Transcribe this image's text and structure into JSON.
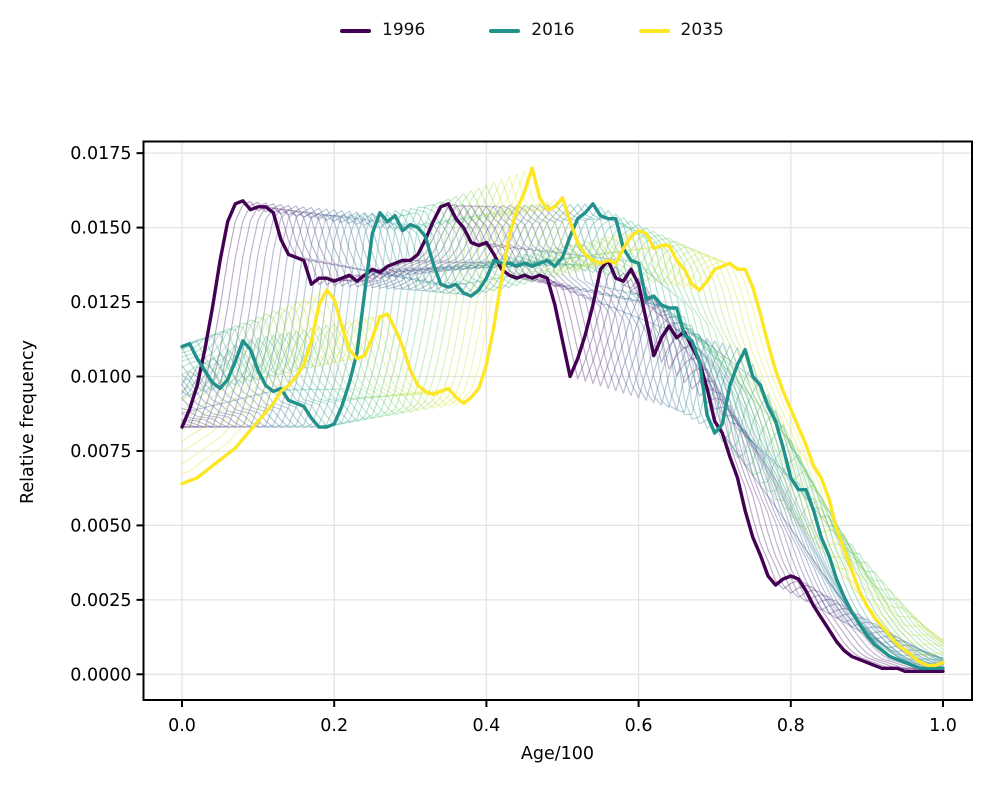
{
  "chart_data": {
    "type": "line",
    "title": "",
    "xlabel": "Age/100",
    "ylabel": "Relative frequency",
    "xlim": [
      0.0,
      1.0
    ],
    "ylim": [
      0.0,
      0.0175
    ],
    "xticks": [
      0.0,
      0.2,
      0.4,
      0.6,
      0.8,
      1.0
    ],
    "yticks": [
      0.0,
      0.0025,
      0.005,
      0.0075,
      0.01,
      0.0125,
      0.015,
      0.0175
    ],
    "grid": true,
    "grid_color": "#e4e4e4",
    "legend_position": "top-center",
    "background_years": {
      "from": 1996,
      "to": 2035,
      "shift_per_year": 0.01,
      "alpha": 0.35
    },
    "colormap_viridis": [
      "#440154",
      "#482878",
      "#3e4a89",
      "#31688e",
      "#26828e",
      "#1f9e89",
      "#35b779",
      "#6ece58",
      "#b5de2b",
      "#fde725"
    ],
    "x_start": 0.0,
    "x_step": 0.01,
    "series": [
      {
        "name": "1996",
        "color": "#440154",
        "values": [
          0.0083,
          0.0089,
          0.0097,
          0.0109,
          0.0123,
          0.0139,
          0.0152,
          0.0158,
          0.0159,
          0.0156,
          0.0157,
          0.0157,
          0.0155,
          0.0146,
          0.0141,
          0.014,
          0.0139,
          0.0131,
          0.0133,
          0.0133,
          0.0132,
          0.0133,
          0.0134,
          0.0132,
          0.0134,
          0.0136,
          0.0135,
          0.0137,
          0.0138,
          0.0139,
          0.0139,
          0.0141,
          0.0146,
          0.0152,
          0.0157,
          0.0158,
          0.0153,
          0.015,
          0.0145,
          0.0144,
          0.0145,
          0.0141,
          0.0136,
          0.0134,
          0.0133,
          0.0134,
          0.0133,
          0.0134,
          0.0133,
          0.0124,
          0.0112,
          0.01,
          0.0106,
          0.0114,
          0.0124,
          0.0136,
          0.0139,
          0.0133,
          0.0132,
          0.0136,
          0.0131,
          0.0119,
          0.0107,
          0.0113,
          0.0117,
          0.0113,
          0.0115,
          0.011,
          0.0105,
          0.0096,
          0.0085,
          0.0081,
          0.0073,
          0.0066,
          0.0055,
          0.0046,
          0.004,
          0.0033,
          0.003,
          0.0032,
          0.0033,
          0.0032,
          0.0028,
          0.0023,
          0.0019,
          0.0015,
          0.0011,
          0.0008,
          0.0006,
          0.0005,
          0.0004,
          0.0003,
          0.0002,
          0.0002,
          0.0002,
          0.0001,
          0.0001,
          0.0001,
          0.0001,
          0.0001,
          0.0001
        ]
      },
      {
        "name": "2016",
        "color": "#21918c",
        "values": [
          0.011,
          0.0111,
          0.0106,
          0.0102,
          0.0098,
          0.0096,
          0.0099,
          0.0105,
          0.0112,
          0.0109,
          0.0102,
          0.0097,
          0.0095,
          0.0096,
          0.0092,
          0.0091,
          0.009,
          0.0086,
          0.0083,
          0.0083,
          0.0084,
          0.009,
          0.0098,
          0.0108,
          0.0128,
          0.0148,
          0.0155,
          0.0152,
          0.0154,
          0.0149,
          0.0151,
          0.015,
          0.0147,
          0.0138,
          0.0131,
          0.013,
          0.0131,
          0.0128,
          0.0127,
          0.0129,
          0.0133,
          0.0139,
          0.0138,
          0.0138,
          0.0137,
          0.0138,
          0.0137,
          0.0138,
          0.0139,
          0.0137,
          0.014,
          0.0147,
          0.0153,
          0.0155,
          0.0158,
          0.0154,
          0.0153,
          0.0153,
          0.0143,
          0.0139,
          0.0138,
          0.0126,
          0.0127,
          0.0124,
          0.0123,
          0.0123,
          0.0114,
          0.0112,
          0.0105,
          0.0087,
          0.0081,
          0.0084,
          0.0097,
          0.0104,
          0.0109,
          0.01,
          0.0097,
          0.009,
          0.0085,
          0.0076,
          0.0066,
          0.0062,
          0.0062,
          0.0055,
          0.0046,
          0.004,
          0.0032,
          0.0026,
          0.0021,
          0.0017,
          0.0013,
          0.001,
          0.0008,
          0.0006,
          0.0005,
          0.0004,
          0.0003,
          0.0002,
          0.0002,
          0.0002,
          0.0002
        ]
      },
      {
        "name": "2035",
        "color": "#fde725",
        "values": [
          0.0064,
          0.0065,
          0.0066,
          0.0068,
          0.007,
          0.0072,
          0.0074,
          0.0076,
          0.0079,
          0.0082,
          0.0085,
          0.0088,
          0.0091,
          0.0095,
          0.0097,
          0.01,
          0.0104,
          0.0112,
          0.0124,
          0.0129,
          0.0126,
          0.0117,
          0.0109,
          0.0106,
          0.0107,
          0.0113,
          0.012,
          0.0121,
          0.0116,
          0.011,
          0.0102,
          0.0097,
          0.0095,
          0.0094,
          0.0095,
          0.0096,
          0.0093,
          0.0091,
          0.0093,
          0.0096,
          0.0104,
          0.0117,
          0.0133,
          0.0147,
          0.0156,
          0.0162,
          0.017,
          0.016,
          0.0156,
          0.0157,
          0.016,
          0.0152,
          0.0145,
          0.0141,
          0.0139,
          0.0138,
          0.0139,
          0.0138,
          0.0143,
          0.0147,
          0.0149,
          0.0148,
          0.0143,
          0.0144,
          0.0144,
          0.0139,
          0.0136,
          0.0131,
          0.0129,
          0.0132,
          0.0136,
          0.0137,
          0.0138,
          0.0136,
          0.0136,
          0.013,
          0.0121,
          0.0111,
          0.0102,
          0.0095,
          0.0089,
          0.0083,
          0.0077,
          0.007,
          0.0066,
          0.0059,
          0.0049,
          0.0042,
          0.0035,
          0.0028,
          0.0023,
          0.0019,
          0.0016,
          0.0013,
          0.001,
          0.0008,
          0.0006,
          0.0004,
          0.0003,
          0.0003,
          0.0004
        ]
      }
    ]
  }
}
